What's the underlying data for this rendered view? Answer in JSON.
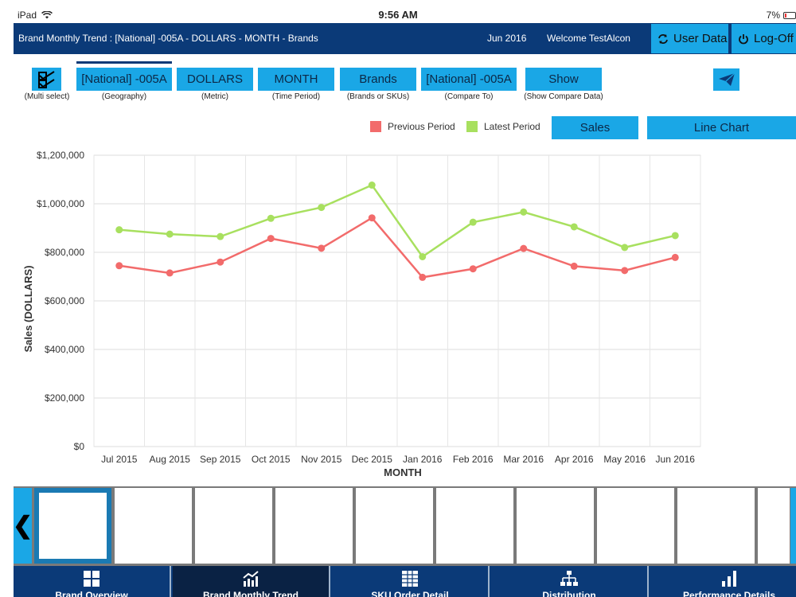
{
  "status": {
    "device": "iPad",
    "time": "9:56 AM",
    "battery": "7%"
  },
  "header": {
    "title": "Brand Monthly Trend : [National] -005A - DOLLARS - MONTH - Brands",
    "date": "Jun 2016",
    "welcome": "Welcome TestAlcon",
    "user_data": "User Data",
    "logoff": "Log-Off"
  },
  "filters": {
    "multi_select_caption": "(Multi select)",
    "items": [
      {
        "label": "[National] -005A",
        "caption": "(Geography)"
      },
      {
        "label": "DOLLARS",
        "caption": "(Metric)"
      },
      {
        "label": "MONTH",
        "caption": "(Time Period)"
      },
      {
        "label": "Brands",
        "caption": "(Brands or SKUs)"
      },
      {
        "label": "[National] -005A",
        "caption": "(Compare To)"
      },
      {
        "label": "Show",
        "caption": "(Show Compare Data)"
      }
    ]
  },
  "controls": {
    "metric_button": "Sales",
    "chart_type_button": "Line Chart"
  },
  "colors": {
    "accent": "#1aa7e6",
    "navy": "#0b3a78",
    "previous": "#f26b6b",
    "latest": "#a8e05f"
  },
  "chart_data": {
    "type": "line",
    "categories": [
      "Jul 2015",
      "Aug 2015",
      "Sep 2015",
      "Oct 2015",
      "Nov 2015",
      "Dec 2015",
      "Jan 2016",
      "Feb 2016",
      "Mar 2016",
      "Apr 2016",
      "May 2016",
      "Jun 2016"
    ],
    "series": [
      {
        "name": "Previous Period",
        "color": "#f26b6b",
        "values": [
          745000,
          715000,
          760000,
          857000,
          817000,
          942000,
          697000,
          732000,
          816000,
          743000,
          725000,
          779000
        ]
      },
      {
        "name": "Latest Period",
        "color": "#a8e05f",
        "values": [
          893000,
          875000,
          865000,
          940000,
          985000,
          1077000,
          782000,
          924000,
          966000,
          905000,
          820000,
          869000
        ]
      }
    ],
    "ylim": [
      0,
      1200000
    ],
    "yticks": [
      0,
      200000,
      400000,
      600000,
      800000,
      1000000,
      1200000
    ],
    "ytick_labels": [
      "$0",
      "$200,000",
      "$400,000",
      "$600,000",
      "$800,000",
      "$1,000,000",
      "$1,200,000"
    ],
    "xlabel": "MONTH",
    "ylabel": "Sales (DOLLARS)",
    "grid": true,
    "legend": "top-right"
  },
  "tabs": [
    {
      "label": "Brand Overview",
      "icon": "grid-icon"
    },
    {
      "label": "Brand Monthly Trend",
      "icon": "trend-chart-icon"
    },
    {
      "label": "SKU Order Detail",
      "icon": "table-icon"
    },
    {
      "label": "Distribution",
      "icon": "hierarchy-icon"
    },
    {
      "label": "Performance Details",
      "icon": "bar-chart-icon"
    }
  ]
}
